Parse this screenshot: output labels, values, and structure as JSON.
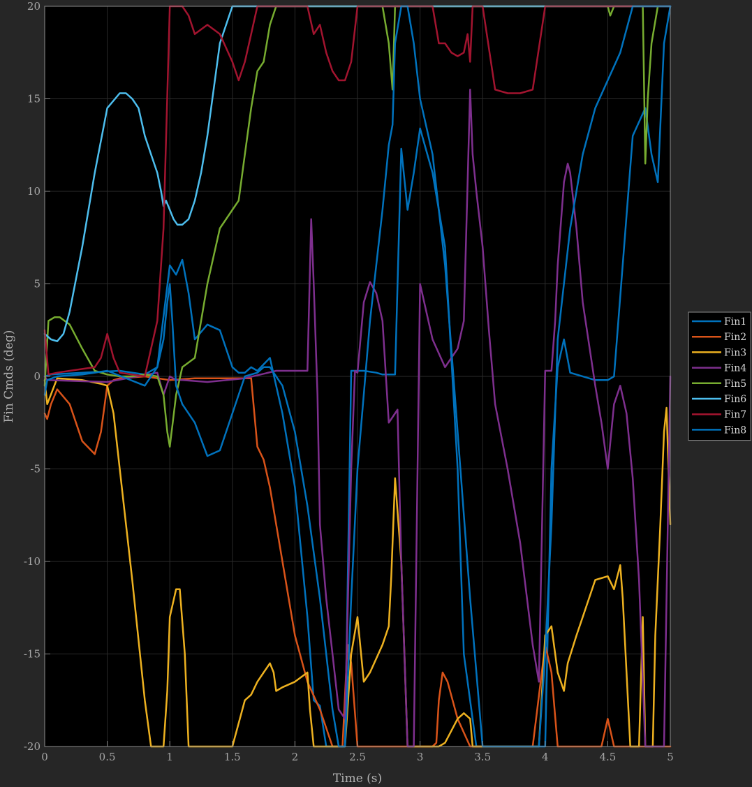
{
  "chart_data": {
    "type": "line",
    "title": "",
    "xlabel": "Time (s)",
    "ylabel": "Fin Cmds (deg)",
    "xlim": [
      0,
      5
    ],
    "ylim": [
      -20,
      20
    ],
    "xticks": [
      0,
      0.5,
      1,
      1.5,
      2,
      2.5,
      3,
      3.5,
      4,
      4.5,
      5
    ],
    "xtick_labels": [
      "0",
      "0.5",
      "1",
      "1.5",
      "2",
      "2.5",
      "3",
      "3.5",
      "4",
      "4.5",
      "5"
    ],
    "yticks": [
      -20,
      -15,
      -10,
      -5,
      0,
      5,
      10,
      15,
      20
    ],
    "ytick_labels": [
      "-20",
      "-15",
      "-10",
      "-5",
      "0",
      "5",
      "10",
      "15",
      "20"
    ],
    "grid": true,
    "legend": "right",
    "series": [
      {
        "name": "Fin1",
        "color": "#0072BD",
        "x": [
          0,
          0.05,
          0.3,
          0.6,
          0.8,
          0.9,
          1.0,
          1.05,
          1.1,
          1.15,
          1.2,
          1.3,
          1.4,
          1.5,
          1.55,
          1.6,
          1.65,
          1.7,
          1.8,
          1.85,
          1.9,
          2.0,
          2.1,
          2.15,
          2.2,
          2.25,
          2.3,
          2.4,
          2.45,
          2.55,
          2.65,
          2.7,
          2.75,
          2.8,
          2.85,
          2.9,
          2.95,
          3.0,
          3.1,
          3.2,
          3.3,
          3.35,
          3.45,
          3.5,
          3.7,
          3.9,
          4.0,
          4.05,
          4.1,
          4.15,
          4.2,
          4.4,
          4.5,
          4.55,
          4.7,
          4.8,
          4.85,
          4.9,
          4.95,
          5.0
        ],
        "y": [
          0,
          0.1,
          0.2,
          0.3,
          0.1,
          0.5,
          6.0,
          5.5,
          6.3,
          4.5,
          2.0,
          2.8,
          2.5,
          0.5,
          0.2,
          0.2,
          0.5,
          0.3,
          1.0,
          -0.5,
          -2.0,
          -6.0,
          -13.0,
          -17.5,
          -17.8,
          -20,
          -20,
          -20,
          0.3,
          0.3,
          0.2,
          0.1,
          0.1,
          0.1,
          12.3,
          9.0,
          11.0,
          13.4,
          11.0,
          7.0,
          -5.0,
          -15.0,
          -20,
          -20,
          -20,
          -20,
          -20,
          -5.0,
          0.5,
          2.0,
          0.2,
          -0.2,
          -0.2,
          0,
          13.0,
          14.5,
          12.0,
          10.5,
          18.0,
          20
        ]
      },
      {
        "name": "Fin2",
        "color": "#D95319",
        "x": [
          0,
          0.02,
          0.05,
          0.1,
          0.2,
          0.3,
          0.4,
          0.45,
          0.5,
          0.55,
          0.6,
          0.8,
          1.0,
          1.2,
          1.4,
          1.6,
          1.65,
          1.7,
          1.75,
          1.8,
          1.9,
          2.0,
          2.1,
          2.2,
          2.3,
          2.38,
          2.42,
          2.45,
          2.5,
          2.55,
          2.7,
          2.9,
          3.1,
          3.13,
          3.15,
          3.18,
          3.22,
          3.3,
          3.4,
          3.45,
          3.5,
          3.9,
          4.0,
          4.05,
          4.1,
          4.45,
          4.5,
          4.55,
          4.6,
          4.8,
          5.0
        ],
        "y": [
          -2.0,
          -2.3,
          -1.5,
          -0.7,
          -1.5,
          -3.5,
          -4.2,
          -3.0,
          -0.5,
          -0.2,
          -0.1,
          0.0,
          -0.2,
          -0.1,
          -0.1,
          -0.1,
          -0.1,
          -3.8,
          -4.5,
          -6.0,
          -10.0,
          -14.0,
          -16.5,
          -18.0,
          -20,
          -20,
          -14.5,
          -15.5,
          -20,
          -20,
          -20,
          -20,
          -20,
          -19.8,
          -17.5,
          -16.0,
          -16.5,
          -18.5,
          -20,
          -20,
          -20,
          -20,
          -14.5,
          -16.0,
          -20,
          -20,
          -18.5,
          -20,
          -20,
          -20,
          -20
        ]
      },
      {
        "name": "Fin3",
        "color": "#EDB120",
        "x": [
          0,
          0.02,
          0.1,
          0.3,
          0.45,
          0.5,
          0.55,
          0.6,
          0.7,
          0.8,
          0.85,
          0.95,
          0.98,
          1.0,
          1.05,
          1.08,
          1.12,
          1.15,
          1.2,
          1.35,
          1.5,
          1.6,
          1.65,
          1.7,
          1.75,
          1.8,
          1.83,
          1.85,
          1.9,
          2.0,
          2.1,
          2.12,
          2.15,
          2.4,
          2.45,
          2.5,
          2.55,
          2.6,
          2.7,
          2.75,
          2.77,
          2.8,
          2.85,
          2.9,
          2.95,
          3.0,
          3.1,
          3.15,
          3.2,
          3.3,
          3.35,
          3.4,
          3.42,
          3.45,
          3.95,
          4.0,
          4.05,
          4.1,
          4.15,
          4.18,
          4.25,
          4.3,
          4.4,
          4.5,
          4.55,
          4.6,
          4.62,
          4.68,
          4.72,
          4.75,
          4.78,
          4.8,
          4.82,
          4.86,
          4.88,
          4.92,
          4.95,
          4.97,
          5.0
        ],
        "y": [
          -0.2,
          -1.5,
          -0.1,
          -0.2,
          -0.4,
          -0.5,
          -2.0,
          -5.0,
          -11.0,
          -17.5,
          -20,
          -20,
          -17.0,
          -13.0,
          -11.5,
          -11.5,
          -15.0,
          -20,
          -20,
          -20,
          -20,
          -17.5,
          -17.2,
          -16.5,
          -16.0,
          -15.5,
          -16.0,
          -17.0,
          -16.8,
          -16.5,
          -16.0,
          -18.0,
          -20,
          -20,
          -15.0,
          -13.0,
          -16.5,
          -16.0,
          -14.5,
          -13.5,
          -10.8,
          -5.5,
          -10.0,
          -20,
          -20,
          -20,
          -20,
          -20,
          -19.8,
          -18.5,
          -18.2,
          -18.5,
          -20,
          -20,
          -20,
          -14.0,
          -13.5,
          -16.0,
          -17.0,
          -15.5,
          -14.0,
          -13.0,
          -11.0,
          -10.8,
          -11.5,
          -10.2,
          -12.0,
          -20,
          -20,
          -20,
          -13.0,
          -20,
          -20,
          -20,
          -14.0,
          -8.0,
          -3.0,
          -1.7,
          -8.0
        ]
      },
      {
        "name": "Fin4",
        "color": "#7E2F8E",
        "x": [
          0,
          0.02,
          0.5,
          0.9,
          0.95,
          1.0,
          1.05,
          1.1,
          1.3,
          1.6,
          1.85,
          2.0,
          2.1,
          2.13,
          2.15,
          2.18,
          2.2,
          2.25,
          2.3,
          2.35,
          2.4,
          2.45,
          2.48,
          2.5,
          2.55,
          2.6,
          2.65,
          2.7,
          2.75,
          2.8,
          2.82,
          2.85,
          2.9,
          2.92,
          2.95,
          3.0,
          3.1,
          3.2,
          3.3,
          3.35,
          3.4,
          3.42,
          3.45,
          3.5,
          3.55,
          3.6,
          3.7,
          3.8,
          3.9,
          3.95,
          4.0,
          4.05,
          4.08,
          4.1,
          4.15,
          4.18,
          4.2,
          4.25,
          4.3,
          4.4,
          4.45,
          4.5,
          4.55,
          4.6,
          4.65,
          4.7,
          4.75,
          4.8,
          4.95,
          5.0
        ],
        "y": [
          0,
          -0.2,
          -0.3,
          0.2,
          -1.0,
          0.0,
          -0.2,
          -0.2,
          -0.3,
          -0.1,
          0.3,
          0.3,
          0.3,
          8.5,
          5.0,
          -1.0,
          -8.0,
          -12.0,
          -15.0,
          -18.0,
          -18.5,
          -5.0,
          0.3,
          0.2,
          4.0,
          5.1,
          4.5,
          3.0,
          -2.5,
          -2.0,
          -1.8,
          -10.0,
          -20,
          -20,
          -20,
          5.0,
          2.0,
          0.5,
          1.5,
          3.0,
          15.5,
          12.0,
          10.0,
          7.0,
          2.5,
          -1.5,
          -5.0,
          -9.0,
          -14.5,
          -16.5,
          0.3,
          0.3,
          3.0,
          6.0,
          10.5,
          11.5,
          11.0,
          8.0,
          4.0,
          -0.5,
          -2.5,
          -5.0,
          -1.5,
          -0.5,
          -2.0,
          -5.5,
          -11.0,
          -20,
          -20,
          0
        ]
      },
      {
        "name": "Fin5",
        "color": "#77AC30",
        "x": [
          0,
          0.03,
          0.08,
          0.12,
          0.2,
          0.3,
          0.4,
          0.5,
          0.6,
          0.7,
          0.8,
          0.9,
          0.95,
          0.98,
          1.0,
          1.05,
          1.1,
          1.2,
          1.3,
          1.4,
          1.5,
          1.55,
          1.6,
          1.65,
          1.7,
          1.75,
          1.8,
          1.85,
          1.9,
          2.0,
          2.5,
          2.7,
          2.75,
          2.78,
          2.8,
          2.82,
          2.85,
          3.0,
          4.5,
          4.52,
          4.55,
          4.7,
          4.78,
          4.8,
          4.82,
          4.85,
          4.9,
          4.95,
          5.0
        ],
        "y": [
          -0.5,
          3.0,
          3.2,
          3.2,
          2.8,
          1.5,
          0.3,
          0.1,
          0.0,
          0.0,
          0.1,
          0.0,
          -1.0,
          -3.0,
          -3.8,
          -1.0,
          0.5,
          1.0,
          5.0,
          8.0,
          9.0,
          9.5,
          12.0,
          14.5,
          16.5,
          17.0,
          19.0,
          20,
          20,
          20,
          20,
          20,
          18.0,
          15.5,
          20,
          20,
          20,
          20,
          20,
          19.5,
          20,
          20,
          20,
          11.5,
          15.0,
          18.0,
          20,
          20,
          20
        ]
      },
      {
        "name": "Fin6",
        "color": "#4DBEEE",
        "x": [
          0,
          0.05,
          0.1,
          0.15,
          0.2,
          0.3,
          0.4,
          0.5,
          0.6,
          0.65,
          0.7,
          0.75,
          0.8,
          0.85,
          0.9,
          0.93,
          0.95,
          0.97,
          1.0,
          1.03,
          1.06,
          1.1,
          1.15,
          1.2,
          1.25,
          1.3,
          1.4,
          1.5,
          1.55,
          1.6,
          1.8,
          2.0,
          5.0
        ],
        "y": [
          2.3,
          2.0,
          1.9,
          2.3,
          3.5,
          7.0,
          11.0,
          14.5,
          15.3,
          15.3,
          15.0,
          14.5,
          13.0,
          12.0,
          11.0,
          10.0,
          9.2,
          9.5,
          9.0,
          8.5,
          8.2,
          8.2,
          8.5,
          9.5,
          11.0,
          13.0,
          18.0,
          20,
          20,
          20,
          20,
          20,
          20
        ]
      },
      {
        "name": "Fin7",
        "color": "#A2142F",
        "x": [
          0,
          0.03,
          0.1,
          0.2,
          0.3,
          0.4,
          0.45,
          0.5,
          0.55,
          0.6,
          0.8,
          0.9,
          0.95,
          1.0,
          1.05,
          1.1,
          1.15,
          1.2,
          1.3,
          1.4,
          1.5,
          1.55,
          1.6,
          1.65,
          1.7,
          1.8,
          2.0,
          2.1,
          2.15,
          2.2,
          2.25,
          2.3,
          2.35,
          2.4,
          2.45,
          2.5,
          2.6,
          3.1,
          3.15,
          3.2,
          3.25,
          3.3,
          3.35,
          3.38,
          3.4,
          3.42,
          3.45,
          3.5,
          3.6,
          3.7,
          3.8,
          3.9,
          4.0,
          4.05,
          4.1,
          4.5,
          5.0
        ],
        "y": [
          2.5,
          0.1,
          0.2,
          0.3,
          0.4,
          0.5,
          1.0,
          2.3,
          1.0,
          0.2,
          0.0,
          3.0,
          8.0,
          20,
          20,
          20,
          19.5,
          18.5,
          19.0,
          18.5,
          17.0,
          16.0,
          17.0,
          18.5,
          20,
          20,
          20,
          20,
          18.5,
          19.0,
          17.5,
          16.5,
          16.0,
          16.0,
          17.0,
          20,
          20,
          20,
          18.0,
          18.0,
          17.5,
          17.3,
          17.5,
          18.5,
          17.0,
          20,
          20,
          20,
          15.5,
          15.3,
          15.3,
          15.5,
          20,
          20,
          20,
          20,
          20
        ]
      },
      {
        "name": "Fin8",
        "color": "#0072BD",
        "x": [
          0,
          0.02,
          0.1,
          0.3,
          0.5,
          0.8,
          0.9,
          0.95,
          0.98,
          1.0,
          1.02,
          1.05,
          1.1,
          1.2,
          1.3,
          1.4,
          1.5,
          1.6,
          1.7,
          1.75,
          1.8,
          1.85,
          1.9,
          2.0,
          2.1,
          2.2,
          2.3,
          2.35,
          2.4,
          2.45,
          2.5,
          2.6,
          2.7,
          2.75,
          2.78,
          2.8,
          2.85,
          2.88,
          2.9,
          2.95,
          3.0,
          3.1,
          3.2,
          3.3,
          3.4,
          3.5,
          3.9,
          3.95,
          4.0,
          4.05,
          4.1,
          4.2,
          4.3,
          4.4,
          4.5,
          4.6,
          4.7,
          4.8,
          4.85,
          4.9,
          4.95,
          5.0
        ],
        "y": [
          -1.0,
          -0.2,
          0.0,
          0.1,
          0.3,
          -0.5,
          0.5,
          2.0,
          4.0,
          5.0,
          3.0,
          -0.5,
          -1.5,
          -2.5,
          -4.3,
          -4.0,
          -2.0,
          0.0,
          0.2,
          0.5,
          0.5,
          0.0,
          -0.5,
          -3.0,
          -7.0,
          -12.0,
          -18.0,
          -20,
          -20,
          -12.0,
          -5.0,
          3.0,
          9.0,
          12.5,
          13.6,
          18.0,
          20,
          20,
          20,
          18.0,
          15.0,
          12.0,
          6.0,
          -3.0,
          -12.0,
          -20,
          -20,
          -20,
          -15.0,
          -8.0,
          2.0,
          8.0,
          12.0,
          14.5,
          16.0,
          17.5,
          20,
          20,
          20,
          20,
          20,
          20
        ]
      }
    ]
  }
}
